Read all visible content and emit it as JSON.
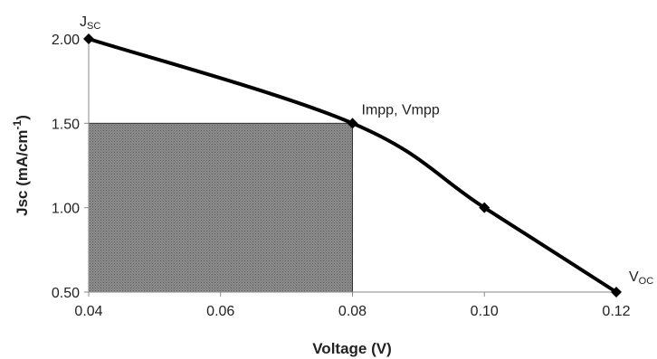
{
  "chart_data": {
    "type": "line",
    "xlabel": "Voltage (V)",
    "ylabel_main": "Jsc (mA/cm",
    "ylabel_sup": "-1",
    "ylabel_close": ")",
    "xlim": [
      0.04,
      0.12
    ],
    "ylim": [
      0.5,
      2.0
    ],
    "x_ticks": [
      0.04,
      0.06,
      0.08,
      0.1,
      0.12
    ],
    "x_tick_labels": [
      "0.04",
      "0.06",
      "0.08",
      "0.10",
      "0.12"
    ],
    "y_ticks": [
      0.5,
      1.0,
      1.5,
      2.0
    ],
    "y_tick_labels": [
      "0.50",
      "1.00",
      "1.50",
      "2.00"
    ],
    "grid": false,
    "series": [
      {
        "x": [
          0.04,
          0.08,
          0.1,
          0.12
        ],
        "y": [
          2.0,
          1.5,
          1.0,
          0.5
        ],
        "color": "#000000",
        "marker": "diamond"
      }
    ],
    "shaded_region": {
      "x": [
        0.04,
        0.08
      ],
      "y": [
        0.5,
        1.5
      ],
      "color": "#7f7f7f",
      "pattern": "dotted"
    },
    "annotations": [
      {
        "main": "J",
        "sub": "SC",
        "x": 0.04,
        "y": 2.0
      },
      {
        "main": "Impp, Vmpp",
        "sub": "",
        "x": 0.08,
        "y": 1.5
      },
      {
        "main": "V",
        "sub": "OC",
        "x": 0.12,
        "y": 0.5
      }
    ]
  }
}
